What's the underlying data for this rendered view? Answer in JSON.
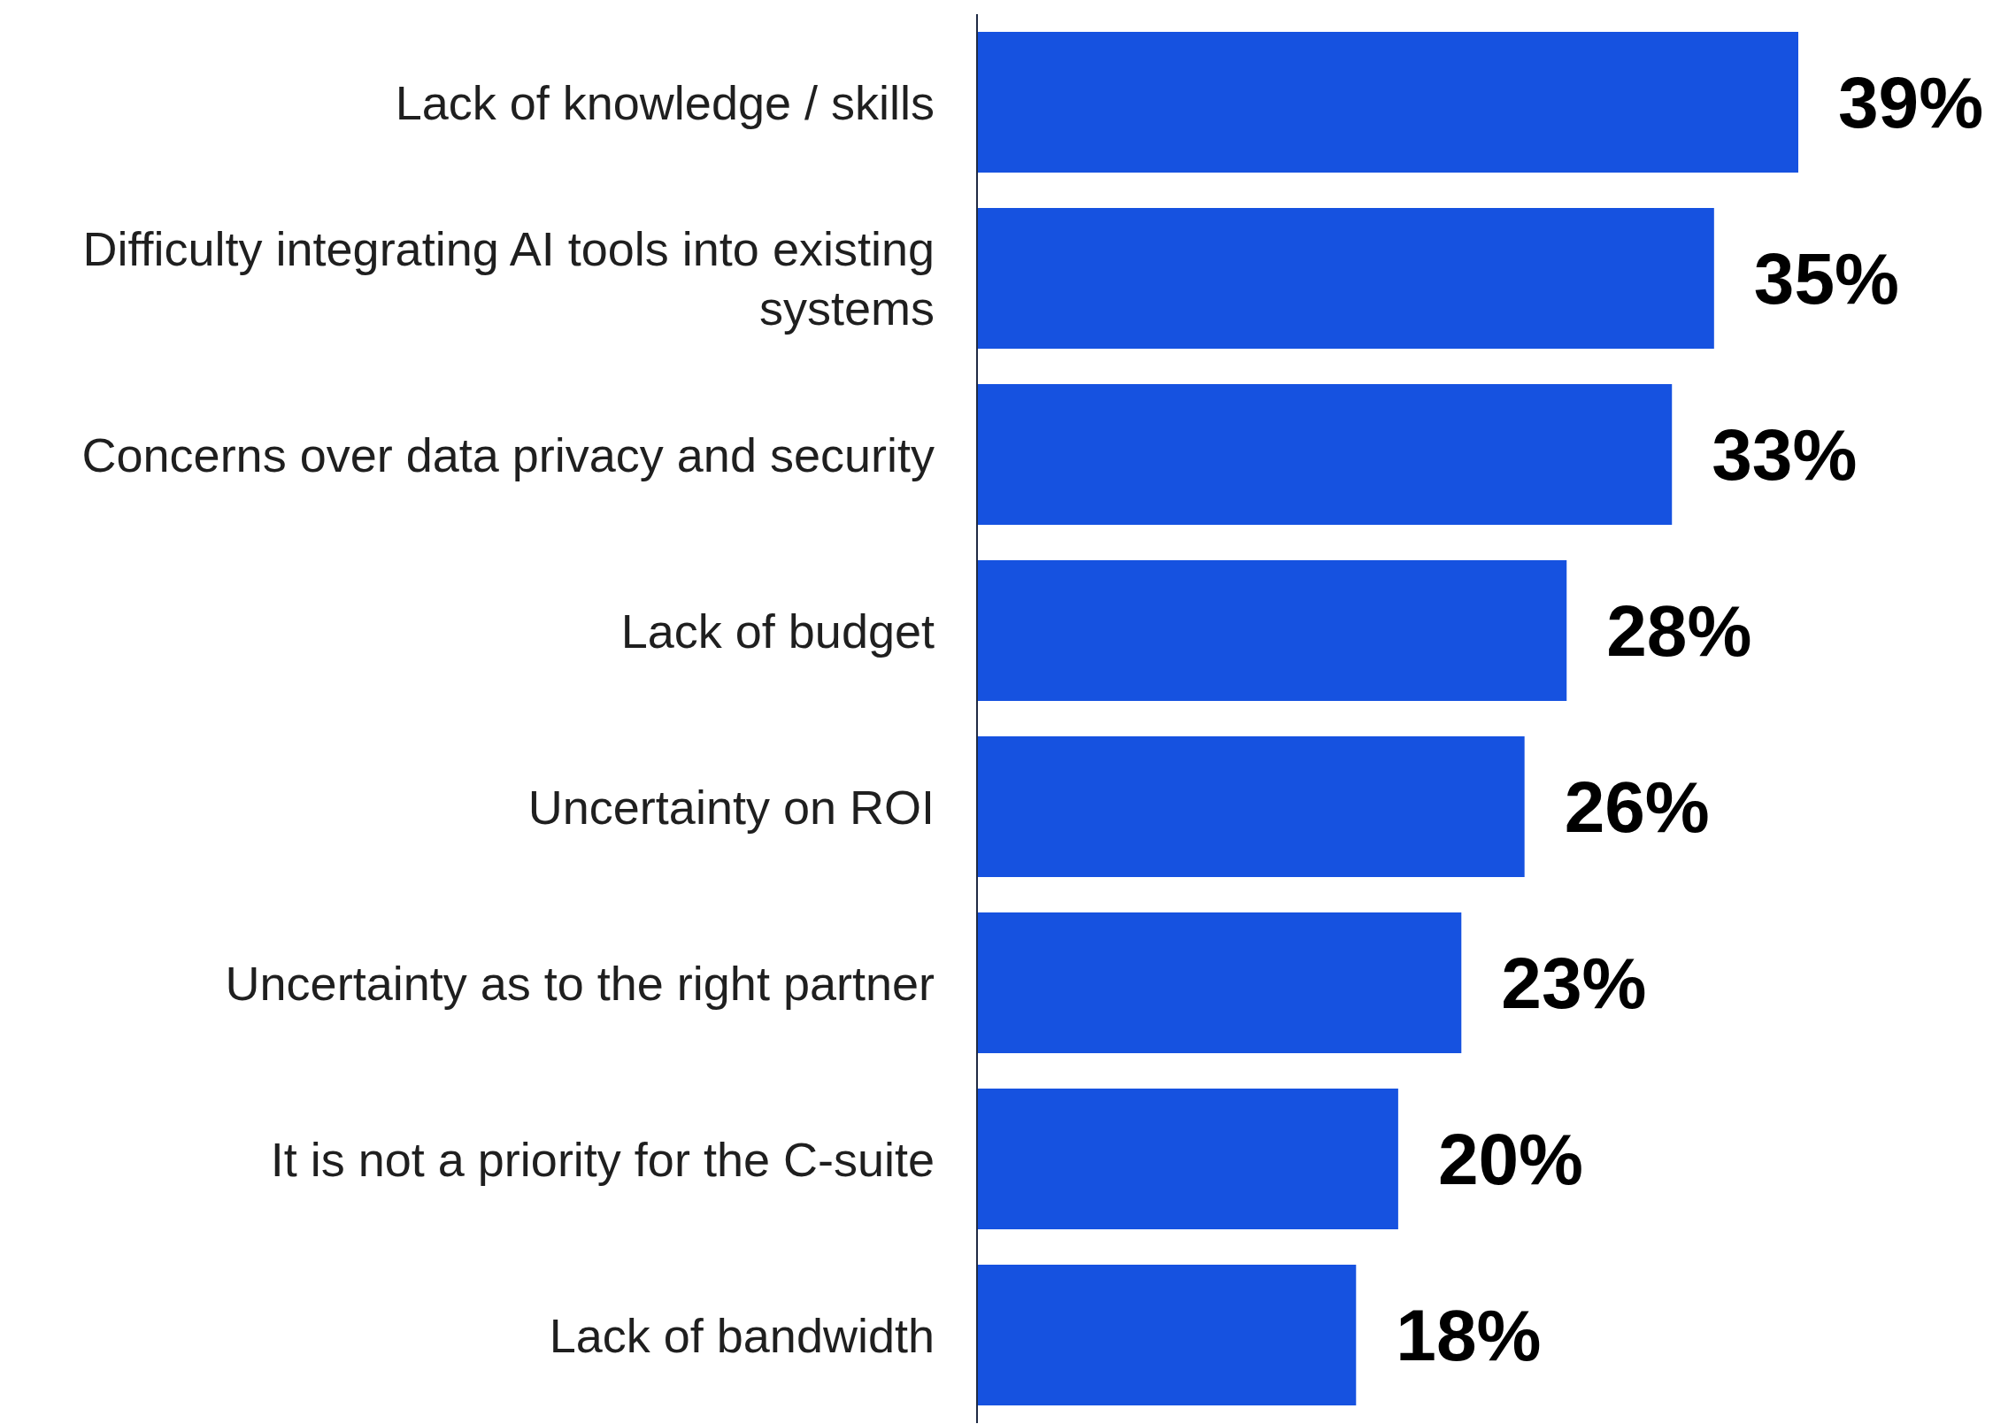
{
  "chart_data": {
    "type": "bar",
    "orientation": "horizontal",
    "categories": [
      "Lack of knowledge / skills",
      "Difficulty integrating AI tools into existing systems",
      "Concerns over data privacy and security",
      "Lack of budget",
      "Uncertainty on ROI",
      "Uncertainty as to the right partner",
      "It is not a priority for the C-suite",
      "Lack of bandwidth"
    ],
    "values": [
      39,
      35,
      33,
      28,
      26,
      23,
      20,
      18
    ],
    "value_labels": [
      "39%",
      "35%",
      "33%",
      "28%",
      "26%",
      "23%",
      "20%",
      "18%"
    ],
    "color": "#1652e0"
  }
}
